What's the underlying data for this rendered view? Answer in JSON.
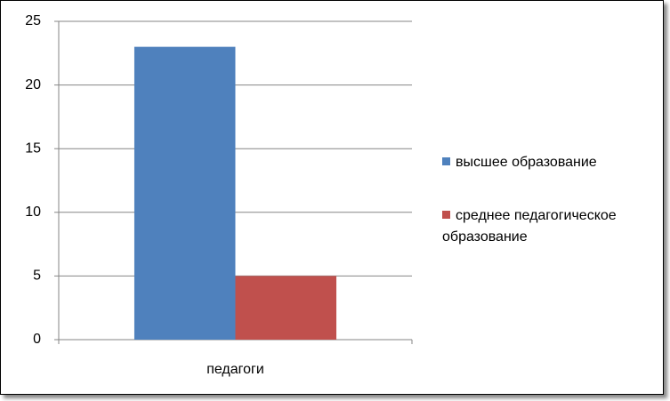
{
  "chart_data": {
    "type": "bar",
    "categories": [
      "педагоги"
    ],
    "series": [
      {
        "name": "высшее образование",
        "color": "#4f81bd",
        "values": [
          23
        ]
      },
      {
        "name": "среднее педагогическое образование",
        "color": "#c0504d",
        "values": [
          5
        ]
      }
    ],
    "ylim": [
      0,
      25
    ],
    "yticks": [
      0,
      5,
      10,
      15,
      20,
      25
    ],
    "grid": true,
    "legend": "right"
  }
}
